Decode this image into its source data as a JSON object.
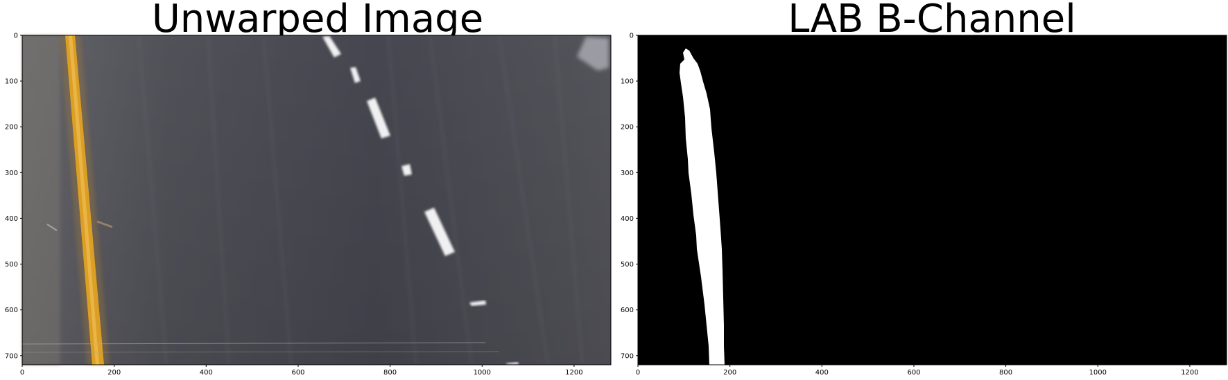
{
  "panels": [
    {
      "title": "Unwarped Image",
      "x_ticks": [
        "0",
        "200",
        "400",
        "600",
        "800",
        "1000",
        "1200"
      ],
      "y_ticks": [
        "0",
        "100",
        "200",
        "300",
        "400",
        "500",
        "600",
        "700"
      ],
      "x_max": 1280,
      "y_max": 720
    },
    {
      "title": "LAB B-Channel",
      "x_ticks": [
        "0",
        "200",
        "400",
        "600",
        "800",
        "1000",
        "1200"
      ],
      "y_ticks": [
        "0",
        "100",
        "200",
        "300",
        "400",
        "500",
        "600",
        "700"
      ],
      "x_max": 1280,
      "y_max": 720
    }
  ],
  "colors": {
    "road": "#4a4a55",
    "yellow_line": "#e0a520",
    "lane_mark": "#f2f2f2",
    "binary_bg": "#000000",
    "binary_fg": "#ffffff"
  }
}
